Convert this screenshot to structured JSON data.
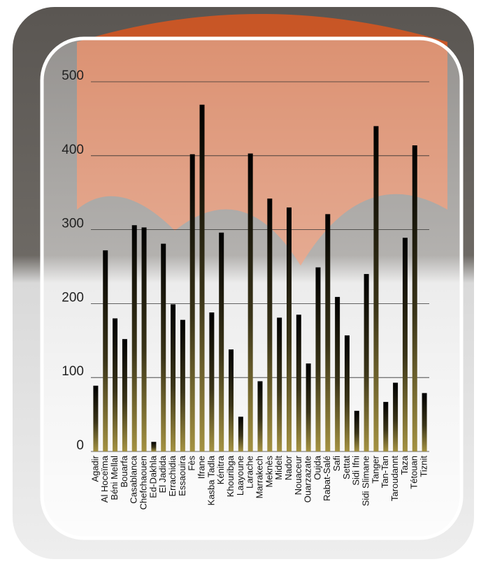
{
  "chart_data": {
    "type": "bar",
    "categories": [
      "Agadir",
      "Al Hoceïma",
      "Béni Mellal",
      "Bouarfa",
      "Casablanca",
      "Chefchaouen",
      "Ed-Dakhla",
      "El Jadida",
      "Errachidia",
      "Essaouira",
      "Fès",
      "Ifrane",
      "Kasba Tadla",
      "Kénitra",
      "Khouribga",
      "Laayoune",
      "Larache",
      "Marrakech",
      "Meknès",
      "Midelt",
      "Nador",
      "Nouaceur",
      "Ouarzazate",
      "Oujda",
      "Rabat-Salé",
      "Safi",
      "Settat",
      "Sidi Ifni",
      "Sidi Slimane",
      "Tanger",
      "Tan-Tan",
      "Taroudannt",
      "Taza",
      "Tétouan",
      "Tiznit"
    ],
    "values": [
      89,
      272,
      180,
      152,
      306,
      303,
      13,
      281,
      199,
      178,
      402,
      469,
      188,
      296,
      138,
      47,
      403,
      95,
      342,
      181,
      330,
      185,
      119,
      249,
      321,
      209,
      157,
      55,
      240,
      440,
      67,
      93,
      289,
      414,
      79
    ],
    "ylim": [
      0,
      500
    ],
    "yticks": [
      0,
      100,
      200,
      300,
      400,
      500
    ],
    "grid": true
  }
}
